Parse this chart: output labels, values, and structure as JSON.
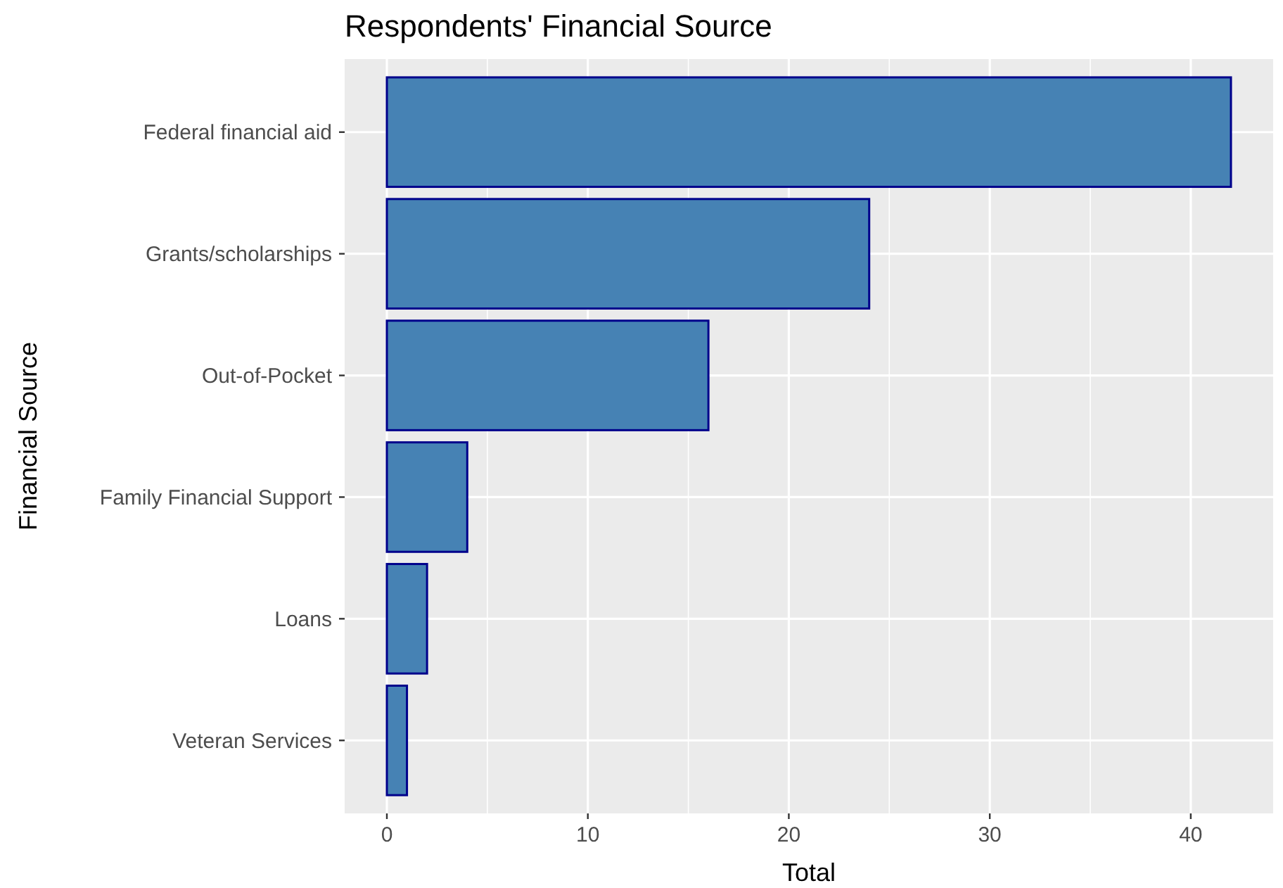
{
  "chart_data": {
    "type": "bar",
    "orientation": "horizontal",
    "title": "Respondents' Financial Source",
    "xlabel": "Total",
    "ylabel": "Financial Source",
    "categories": [
      "Federal financial aid",
      "Grants/scholarships",
      "Out-of-Pocket",
      "Family Financial Support",
      "Loans",
      "Veteran Services"
    ],
    "values": [
      42,
      24,
      16,
      4,
      2,
      1
    ],
    "color": "#4682b4",
    "xlim": [
      -2.1,
      44.1
    ],
    "xticks": [
      0,
      10,
      20,
      30,
      40
    ],
    "grid": true
  }
}
